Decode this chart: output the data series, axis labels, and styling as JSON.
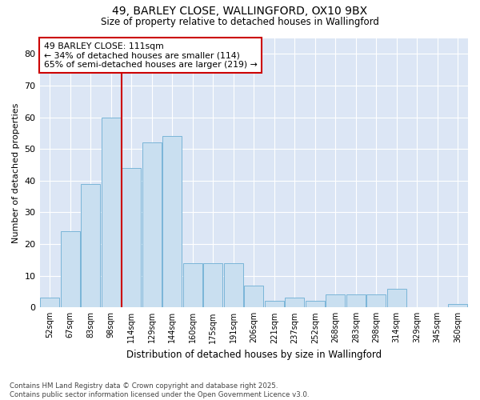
{
  "title1": "49, BARLEY CLOSE, WALLINGFORD, OX10 9BX",
  "title2": "Size of property relative to detached houses in Wallingford",
  "xlabel": "Distribution of detached houses by size in Wallingford",
  "ylabel": "Number of detached properties",
  "categories": [
    "52sqm",
    "67sqm",
    "83sqm",
    "98sqm",
    "114sqm",
    "129sqm",
    "144sqm",
    "160sqm",
    "175sqm",
    "191sqm",
    "206sqm",
    "221sqm",
    "237sqm",
    "252sqm",
    "268sqm",
    "283sqm",
    "298sqm",
    "314sqm",
    "329sqm",
    "345sqm",
    "360sqm"
  ],
  "values": [
    3,
    24,
    39,
    60,
    44,
    52,
    54,
    14,
    14,
    14,
    7,
    2,
    3,
    2,
    4,
    4,
    4,
    6,
    0,
    0,
    1
  ],
  "bar_color": "#c9dff0",
  "bar_edge_color": "#7ab5d8",
  "vline_color": "#cc0000",
  "annotation_text": "49 BARLEY CLOSE: 111sqm\n← 34% of detached houses are smaller (114)\n65% of semi-detached houses are larger (219) →",
  "annotation_box_color": "#ffffff",
  "annotation_box_edge": "#cc0000",
  "ylim": [
    0,
    85
  ],
  "yticks": [
    0,
    10,
    20,
    30,
    40,
    50,
    60,
    70,
    80
  ],
  "plot_bg_color": "#dce6f5",
  "fig_bg_color": "#ffffff",
  "grid_color": "#ffffff",
  "footer_text": "Contains HM Land Registry data © Crown copyright and database right 2025.\nContains public sector information licensed under the Open Government Licence v3.0.",
  "fig_width": 6.0,
  "fig_height": 5.0,
  "dpi": 100
}
